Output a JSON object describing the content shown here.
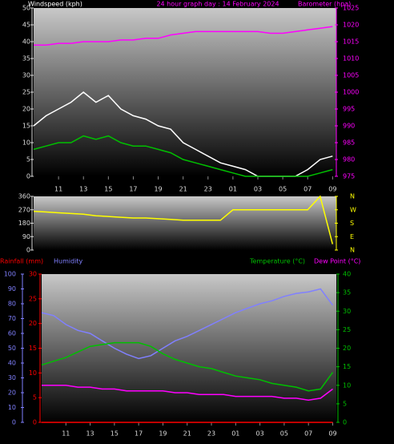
{
  "chart_data": [
    {
      "type": "line",
      "title": "24 hour graph day : 14 February 2024",
      "ylabel": "Windspeed (kph)",
      "y2label": "Barometer (hpa)",
      "x": [
        9,
        10,
        11,
        12,
        13,
        14,
        15,
        16,
        17,
        18,
        19,
        20,
        21,
        22,
        23,
        24,
        25,
        26,
        27,
        28,
        29,
        30,
        31,
        32,
        33
      ],
      "xlim": [
        9,
        33.3
      ],
      "xticks": [
        11,
        13,
        15,
        17,
        19,
        21,
        23,
        {
          "value": 25,
          "label": "01"
        },
        {
          "value": 27,
          "label": "03"
        },
        {
          "value": 29,
          "label": "05"
        },
        {
          "value": 31,
          "label": "07"
        },
        {
          "value": 33,
          "label": "09"
        }
      ],
      "ylim": [
        0,
        50
      ],
      "yticks": [
        0,
        5,
        10,
        15,
        20,
        25,
        30,
        35,
        40,
        45,
        50
      ],
      "ycolor": "#dddddd",
      "y2lim": [
        975,
        1025
      ],
      "y2ticks": [
        975,
        980,
        985,
        990,
        995,
        1000,
        1005,
        1010,
        1015,
        1020,
        1025
      ],
      "y2color": "#ff00ff",
      "series": [
        {
          "color": "#ffffff",
          "values": [
            15,
            18,
            20,
            22,
            25,
            22,
            24,
            20,
            18,
            17,
            15,
            14,
            10,
            8,
            6,
            4,
            3,
            2,
            0,
            0,
            0,
            0,
            2,
            5,
            6
          ]
        },
        {
          "color": "#00c000",
          "values": [
            8,
            9,
            10,
            10,
            12,
            11,
            12,
            10,
            9,
            9,
            8,
            7,
            5,
            4,
            3,
            2,
            1,
            0,
            0,
            0,
            0,
            0,
            0,
            1,
            2
          ]
        },
        {
          "color": "#ff00ff",
          "axis": "y2",
          "values": [
            1014,
            1014,
            1014.5,
            1014.5,
            1015,
            1015,
            1015,
            1015.5,
            1015.5,
            1016,
            1016,
            1017,
            1017.5,
            1018,
            1018,
            1018,
            1018,
            1018,
            1018,
            1017.5,
            1017.5,
            1018,
            1018.5,
            1019,
            1019.5
          ]
        }
      ]
    },
    {
      "type": "line",
      "x": [
        9,
        10,
        11,
        12,
        13,
        14,
        15,
        16,
        17,
        18,
        19,
        20,
        21,
        22,
        23,
        24,
        25,
        26,
        27,
        28,
        29,
        30,
        31,
        32,
        33
      ],
      "xlim": [
        9,
        33.3
      ],
      "ylim": [
        0,
        360
      ],
      "yticks": [
        0,
        90,
        180,
        270,
        360
      ],
      "ycolor": "#dddddd",
      "y2lim": [
        0,
        360
      ],
      "y2ticks": [
        {
          "value": 360,
          "label": "N"
        },
        {
          "value": 270,
          "label": "W"
        },
        {
          "value": 180,
          "label": "S"
        },
        {
          "value": 90,
          "label": "E"
        },
        {
          "value": 0,
          "label": "N"
        }
      ],
      "y2color": "#ffff00",
      "series": [
        {
          "color": "#ffff00",
          "values": [
            260,
            255,
            250,
            245,
            240,
            230,
            225,
            220,
            215,
            215,
            210,
            205,
            200,
            200,
            200,
            200,
            270,
            270,
            270,
            270,
            270,
            270,
            270,
            360,
            40
          ]
        }
      ]
    },
    {
      "type": "line",
      "x": [
        9,
        10,
        11,
        12,
        13,
        14,
        15,
        16,
        17,
        18,
        19,
        20,
        21,
        22,
        23,
        24,
        25,
        26,
        27,
        28,
        29,
        30,
        31,
        32,
        33
      ],
      "xlim": [
        9,
        33.3
      ],
      "xticks": [
        11,
        13,
        15,
        17,
        19,
        21,
        23,
        {
          "value": 25,
          "label": "01"
        },
        {
          "value": 27,
          "label": "03"
        },
        {
          "value": 29,
          "label": "05"
        },
        {
          "value": 31,
          "label": "07"
        },
        {
          "value": 33,
          "label": "09"
        }
      ],
      "ylim": [
        0,
        100
      ],
      "yticks": [
        0,
        10,
        20,
        30,
        40,
        50,
        60,
        70,
        80,
        90,
        100
      ],
      "ycolor": "#8080ff",
      "y3lim": [
        0,
        30
      ],
      "y3ticks": [
        0,
        5,
        10,
        15,
        20,
        25,
        30
      ],
      "y3color": "#ff0000",
      "y2lim": [
        0,
        40
      ],
      "y2ticks": [
        0,
        5,
        10,
        15,
        20,
        25,
        30,
        35,
        40
      ],
      "y2color": "#00c000",
      "series": [
        {
          "name": "Rainfall (mm)",
          "color": "#ff0000",
          "axis": "y3",
          "values": [
            0,
            0,
            0,
            0,
            0,
            0,
            0,
            0,
            0,
            0,
            0,
            0,
            0,
            0,
            0,
            0,
            0,
            0,
            0,
            0,
            0,
            0,
            0,
            0,
            0
          ]
        },
        {
          "name": "Humidity",
          "color": "#8080ff",
          "values": [
            74,
            72,
            66,
            62,
            60,
            55,
            50,
            46,
            43,
            45,
            50,
            55,
            58,
            62,
            66,
            70,
            74,
            77,
            80,
            82,
            85,
            87,
            88,
            90,
            79
          ]
        },
        {
          "name": "Temperature (°C)",
          "color": "#00c000",
          "axis": "y2",
          "values": [
            15.5,
            16.5,
            17.5,
            19,
            20.5,
            21,
            21.5,
            21.5,
            21.5,
            20.5,
            18.5,
            17,
            16,
            15,
            14.5,
            13.5,
            12.5,
            12,
            11.5,
            10.5,
            10,
            9.5,
            8.5,
            9,
            13.5
          ]
        },
        {
          "name": "Dew Point (°C)",
          "color": "#ff00ff",
          "axis": "y2",
          "values": [
            10,
            10,
            10,
            9.5,
            9.5,
            9,
            9,
            8.5,
            8.5,
            8.5,
            8.5,
            8,
            8,
            7.5,
            7.5,
            7.5,
            7,
            7,
            7,
            7,
            6.5,
            6.5,
            6,
            6.5,
            9
          ]
        }
      ]
    }
  ]
}
